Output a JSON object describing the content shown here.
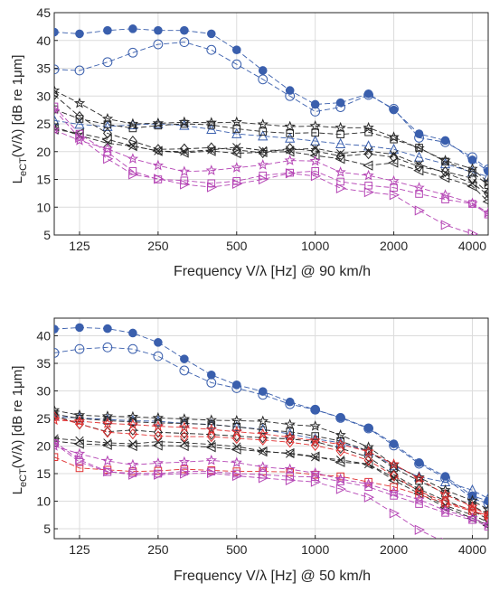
{
  "chart_data": [
    {
      "type": "line",
      "xscale": "log2",
      "xlim": [
        100,
        4600
      ],
      "ylim": [
        5,
        45
      ],
      "xticks": [
        125,
        250,
        500,
        1000,
        2000,
        4000
      ],
      "xticklabels": [
        "125",
        "250",
        "500",
        "1000",
        "2000",
        "4000"
      ],
      "yticks": [
        5,
        10,
        15,
        20,
        25,
        30,
        35,
        40,
        45
      ],
      "xlabel": "Frequency V/λ [Hz] @ 90 km/h",
      "ylabel": "LₑCT(V/λ) [dB re 1μm]",
      "ylabel_main": "L",
      "ylabel_sub": "eCT",
      "ylabel_rest": "(V/λ) [dB re 1μm]",
      "grid": true,
      "x": [
        100,
        125,
        160,
        200,
        250,
        315,
        400,
        500,
        630,
        800,
        1000,
        1250,
        1600,
        2000,
        2500,
        3150,
        4000,
        4600
      ],
      "series": [
        {
          "color": "#3a5fad",
          "marker": "filled-circle",
          "values": [
            41.5,
            41.2,
            41.8,
            42.1,
            41.8,
            41.8,
            41.2,
            38.3,
            34.6,
            31.0,
            28.5,
            28.8,
            30.4,
            27.5,
            23.2,
            22.0,
            18.5,
            16.5
          ]
        },
        {
          "color": "#3a5fad",
          "marker": "open-circle",
          "values": [
            34.8,
            34.6,
            36.1,
            37.8,
            39.3,
            39.7,
            38.3,
            35.7,
            33.0,
            30.0,
            27.2,
            28.0,
            30.2,
            27.7,
            22.5,
            21.7,
            19.0,
            16.8
          ]
        },
        {
          "color": "#3a5fad",
          "marker": "triangle-up",
          "values": [
            25.6,
            24.9,
            24.5,
            24.8,
            25.0,
            24.7,
            24.0,
            23.2,
            22.8,
            22.4,
            21.9,
            21.4,
            21.0,
            20.4,
            19.0,
            17.8,
            16.3,
            15.5
          ]
        },
        {
          "color": "#262626",
          "marker": "star",
          "values": [
            31.0,
            28.7,
            25.9,
            25.0,
            25.1,
            25.3,
            25.2,
            25.3,
            24.9,
            24.5,
            24.6,
            24.3,
            24.3,
            22.6,
            20.6,
            18.4,
            16.9,
            14.5
          ]
        },
        {
          "color": "#262626",
          "marker": "square",
          "values": [
            27.6,
            25.9,
            24.9,
            24.2,
            24.7,
            25.0,
            24.8,
            24.1,
            23.6,
            23.3,
            23.4,
            23.1,
            23.5,
            22.2,
            20.7,
            18.2,
            16.2,
            14.0
          ]
        },
        {
          "color": "#262626",
          "marker": "diamond",
          "values": [
            30.2,
            26.3,
            23.3,
            21.9,
            20.4,
            20.5,
            20.7,
            20.3,
            19.8,
            20.6,
            20.1,
            19.2,
            19.6,
            19.0,
            17.3,
            16.4,
            15.2,
            12.5
          ]
        },
        {
          "color": "#262626",
          "marker": "x",
          "values": [
            24.5,
            22.9,
            21.5,
            21.0,
            20.1,
            20.0,
            20.3,
            20.8,
            20.2,
            20.3,
            20.6,
            19.7,
            20.1,
            19.5,
            17.7,
            16.2,
            14.3,
            12.2
          ]
        },
        {
          "color": "#262626",
          "marker": "triangle-left",
          "values": [
            24.0,
            23.3,
            22.2,
            21.0,
            20.1,
            19.8,
            20.1,
            19.7,
            19.9,
            20.0,
            19.3,
            18.7,
            17.5,
            18.0,
            16.6,
            15.3,
            13.8,
            11.0
          ]
        },
        {
          "color": "#b545b5",
          "marker": "star",
          "values": [
            23.9,
            22.0,
            20.5,
            18.7,
            17.5,
            16.4,
            16.6,
            17.1,
            17.6,
            18.4,
            18.3,
            16.3,
            15.7,
            14.7,
            13.5,
            12.2,
            10.7,
            9.0
          ]
        },
        {
          "color": "#b545b5",
          "marker": "square",
          "values": [
            28.1,
            23.2,
            19.9,
            16.5,
            15.0,
            14.8,
            14.3,
            14.7,
            15.7,
            16.2,
            16.5,
            14.6,
            13.9,
            13.5,
            12.4,
            11.4,
            10.6,
            8.7
          ]
        },
        {
          "color": "#b545b5",
          "marker": "triangle-right",
          "values": [
            27.5,
            22.5,
            18.7,
            15.9,
            15.1,
            14.1,
            13.6,
            14.2,
            15.0,
            16.1,
            15.6,
            13.4,
            12.7,
            12.2,
            9.4,
            6.8,
            5.2,
            3.5
          ]
        }
      ]
    },
    {
      "type": "line",
      "xscale": "log2",
      "xlim": [
        100,
        4600
      ],
      "ylim": [
        3.2,
        43.2
      ],
      "xticks": [
        125,
        250,
        500,
        1000,
        2000,
        4000
      ],
      "xticklabels": [
        "125",
        "250",
        "500",
        "1000",
        "2000",
        "4000"
      ],
      "yticks": [
        5,
        10,
        15,
        20,
        25,
        30,
        35,
        40
      ],
      "xlabel": "Frequency V/λ [Hz] @ 50 km/h",
      "ylabel": "LₑCT(V/λ) [dB re 1μm]",
      "ylabel_main": "L",
      "ylabel_sub": "eCT",
      "ylabel_rest": "(V/λ) [dB re 1μm]",
      "grid": true,
      "x": [
        100,
        125,
        160,
        200,
        250,
        315,
        400,
        500,
        630,
        800,
        1000,
        1250,
        1600,
        2000,
        2500,
        3150,
        4000,
        4600
      ],
      "series": [
        {
          "color": "#3a5fad",
          "marker": "filled-circle",
          "values": [
            41.2,
            41.5,
            41.3,
            40.5,
            38.8,
            35.8,
            32.9,
            31.1,
            29.9,
            28.0,
            26.6,
            25.2,
            23.3,
            20.4,
            17.0,
            14.5,
            11.0,
            10.0
          ]
        },
        {
          "color": "#3a5fad",
          "marker": "open-circle",
          "values": [
            36.9,
            37.6,
            37.9,
            37.6,
            36.3,
            33.7,
            31.5,
            30.5,
            29.3,
            27.6,
            26.6,
            25.1,
            23.2,
            20.1,
            16.8,
            14.2,
            10.5,
            9.6
          ]
        },
        {
          "color": "#3a5fad",
          "marker": "triangle-up",
          "values": [
            25.4,
            25.1,
            24.8,
            24.6,
            24.5,
            24.1,
            23.9,
            23.5,
            23.0,
            22.2,
            21.3,
            20.6,
            19.0,
            16.4,
            14.4,
            13.5,
            12.0,
            10.5
          ]
        },
        {
          "color": "#262626",
          "marker": "star",
          "values": [
            26.5,
            25.6,
            25.4,
            25.3,
            25.1,
            24.9,
            24.7,
            24.6,
            24.5,
            23.9,
            23.6,
            22.0,
            19.8,
            16.6,
            14.3,
            12.0,
            10.1,
            8.5
          ]
        },
        {
          "color": "#262626",
          "marker": "square",
          "values": [
            25.8,
            25.0,
            24.6,
            24.4,
            24.2,
            24.1,
            23.9,
            23.5,
            22.9,
            22.6,
            21.8,
            20.9,
            19.1,
            16.0,
            13.7,
            11.4,
            9.2,
            7.6
          ]
        },
        {
          "color": "#262626",
          "marker": "diamond",
          "values": [
            25.6,
            24.0,
            22.6,
            22.9,
            22.5,
            22.3,
            22.1,
            21.8,
            21.5,
            21.3,
            20.8,
            19.6,
            18.0,
            14.8,
            12.2,
            10.1,
            8.3,
            6.7
          ]
        },
        {
          "color": "#262626",
          "marker": "x",
          "values": [
            21.4,
            21.0,
            20.6,
            20.4,
            20.8,
            20.6,
            20.3,
            19.9,
            19.1,
            18.6,
            18.0,
            17.5,
            16.7,
            14.3,
            11.9,
            9.2,
            7.5,
            6.2
          ]
        },
        {
          "color": "#262626",
          "marker": "triangle-left",
          "values": [
            20.9,
            20.4,
            20.2,
            20.0,
            20.1,
            20.0,
            19.8,
            19.4,
            19.0,
            18.7,
            18.1,
            17.1,
            16.7,
            13.8,
            11.4,
            8.9,
            6.9,
            5.6
          ]
        },
        {
          "color": "#e03030",
          "marker": "star",
          "values": [
            24.7,
            24.5,
            24.1,
            23.9,
            23.6,
            23.4,
            23.0,
            22.6,
            22.2,
            21.6,
            21.0,
            20.3,
            19.0,
            16.7,
            14.1,
            11.2,
            9.0,
            7.4
          ]
        },
        {
          "color": "#e03030",
          "marker": "diamond",
          "values": [
            25.3,
            24.0,
            22.5,
            22.2,
            21.8,
            21.7,
            21.7,
            21.4,
            21.1,
            20.7,
            20.1,
            19.1,
            17.4,
            14.6,
            11.8,
            9.8,
            8.4,
            7.0
          ]
        },
        {
          "color": "#e03030",
          "marker": "square",
          "values": [
            18.0,
            16.0,
            15.7,
            15.4,
            15.5,
            15.8,
            15.6,
            15.4,
            15.4,
            15.3,
            14.8,
            14.5,
            13.5,
            12.6,
            11.2,
            9.6,
            8.2,
            7.4
          ]
        },
        {
          "color": "#b545b5",
          "marker": "star",
          "values": [
            20.0,
            18.6,
            17.3,
            16.6,
            16.9,
            17.1,
            17.4,
            17.0,
            16.2,
            15.8,
            15.1,
            14.0,
            13.1,
            11.6,
            10.3,
            8.3,
            6.9,
            5.8
          ]
        },
        {
          "color": "#b545b5",
          "marker": "square",
          "values": [
            20.5,
            17.1,
            15.3,
            15.1,
            15.0,
            15.4,
            15.4,
            15.0,
            14.8,
            14.5,
            14.4,
            13.6,
            12.6,
            11.0,
            9.5,
            7.9,
            6.6,
            5.4
          ]
        },
        {
          "color": "#b545b5",
          "marker": "triangle-right",
          "values": [
            20.8,
            17.5,
            15.4,
            14.8,
            14.8,
            15.0,
            15.1,
            14.6,
            14.2,
            13.8,
            13.5,
            12.2,
            10.7,
            7.8,
            4.8,
            2.5,
            1.5,
            1.0
          ]
        }
      ]
    }
  ]
}
